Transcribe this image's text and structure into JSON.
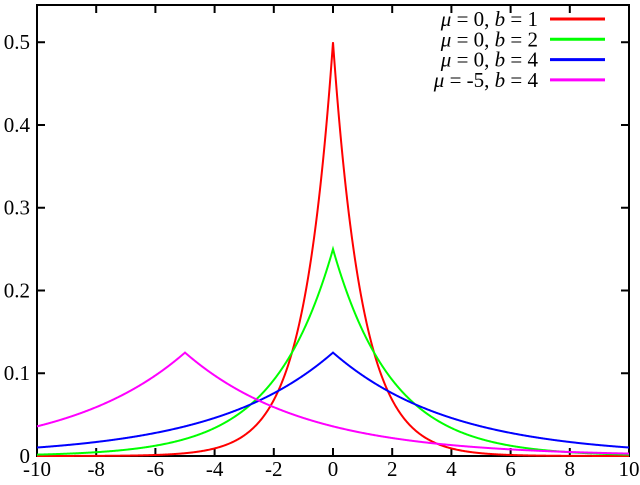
{
  "figure": {
    "description_visible": false,
    "background": "#ffffff",
    "frame_color": "#000000"
  },
  "chart_data": {
    "type": "line",
    "title": "",
    "xlabel": "",
    "ylabel": "",
    "xlim": [
      -10,
      10
    ],
    "ylim": [
      0,
      0.545
    ],
    "grid": false,
    "legend_position": "top-right",
    "xticks": [
      {
        "v": -10,
        "label": "-10"
      },
      {
        "v": -8,
        "label": "-8"
      },
      {
        "v": -6,
        "label": "-6"
      },
      {
        "v": -4,
        "label": "-4"
      },
      {
        "v": -2,
        "label": "-2"
      },
      {
        "v": 0,
        "label": "0"
      },
      {
        "v": 2,
        "label": "2"
      },
      {
        "v": 4,
        "label": "4"
      },
      {
        "v": 6,
        "label": "6"
      },
      {
        "v": 8,
        "label": "8"
      },
      {
        "v": 10,
        "label": "10"
      }
    ],
    "yticks": [
      {
        "v": 0.0,
        "label": "0"
      },
      {
        "v": 0.1,
        "label": "0.1"
      },
      {
        "v": 0.2,
        "label": "0.2"
      },
      {
        "v": 0.3,
        "label": "0.3"
      },
      {
        "v": 0.4,
        "label": "0.4"
      },
      {
        "v": 0.5,
        "label": "0.5"
      }
    ],
    "function": "Laplace pdf f(x) = exp(-|x - mu| / b) / (2 b)",
    "series": [
      {
        "name": "μ =  0, b = 1",
        "mu": 0,
        "b": 1,
        "color": "#ff0000",
        "peak_x": 0,
        "peak_y": 0.5
      },
      {
        "name": "μ =  0, b = 2",
        "mu": 0,
        "b": 2,
        "color": "#00ff00",
        "peak_x": 0,
        "peak_y": 0.25
      },
      {
        "name": "μ =  0, b = 4",
        "mu": 0,
        "b": 4,
        "color": "#0000ff",
        "peak_x": 0,
        "peak_y": 0.125
      },
      {
        "name": "μ = -5, b = 4",
        "mu": -5,
        "b": 4,
        "color": "#ff00ff",
        "peak_x": -5,
        "peak_y": 0.125
      }
    ],
    "legend": {
      "items": [
        {
          "color": "#ff0000",
          "parts": [
            {
              "t": "μ",
              "i": true
            },
            {
              "t": " =  0, ",
              "i": false
            },
            {
              "t": "b",
              "i": true
            },
            {
              "t": " = 1",
              "i": false
            }
          ]
        },
        {
          "color": "#00ff00",
          "parts": [
            {
              "t": "μ",
              "i": true
            },
            {
              "t": " =  0, ",
              "i": false
            },
            {
              "t": "b",
              "i": true
            },
            {
              "t": " = 2",
              "i": false
            }
          ]
        },
        {
          "color": "#0000ff",
          "parts": [
            {
              "t": "μ",
              "i": true
            },
            {
              "t": " =  0, ",
              "i": false
            },
            {
              "t": "b",
              "i": true
            },
            {
              "t": " = 4",
              "i": false
            }
          ]
        },
        {
          "color": "#ff00ff",
          "parts": [
            {
              "t": "μ",
              "i": true
            },
            {
              "t": " = -5, ",
              "i": false
            },
            {
              "t": "b",
              "i": true
            },
            {
              "t": " = 4",
              "i": false
            }
          ]
        }
      ]
    }
  }
}
